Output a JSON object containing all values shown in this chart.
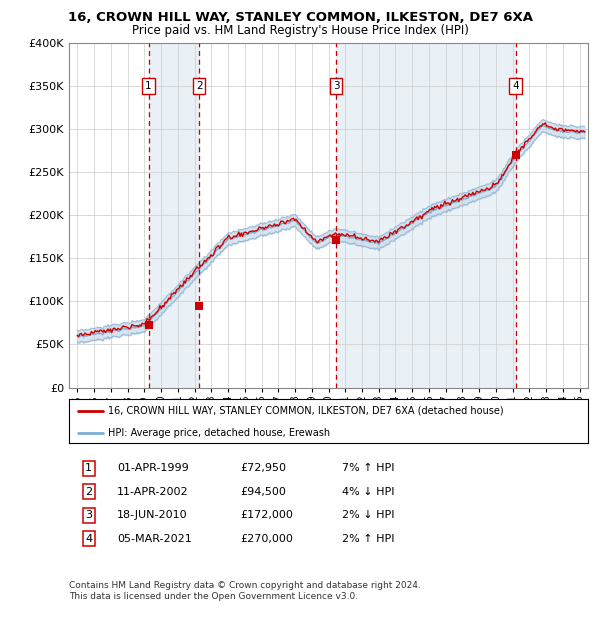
{
  "title1": "16, CROWN HILL WAY, STANLEY COMMON, ILKESTON, DE7 6XA",
  "title2": "Price paid vs. HM Land Registry's House Price Index (HPI)",
  "legend_line1": "16, CROWN HILL WAY, STANLEY COMMON, ILKESTON, DE7 6XA (detached house)",
  "legend_line2": "HPI: Average price, detached house, Erewash",
  "footnote1": "Contains HM Land Registry data © Crown copyright and database right 2024.",
  "footnote2": "This data is licensed under the Open Government Licence v3.0.",
  "sales": [
    {
      "num": 1,
      "date": "01-APR-1999",
      "price": 72950,
      "pct": "7%",
      "dir": "↑",
      "year_x": 1999.25
    },
    {
      "num": 2,
      "date": "11-APR-2002",
      "price": 94500,
      "pct": "4%",
      "dir": "↓",
      "year_x": 2002.28
    },
    {
      "num": 3,
      "date": "18-JUN-2010",
      "price": 172000,
      "pct": "2%",
      "dir": "↓",
      "year_x": 2010.46
    },
    {
      "num": 4,
      "date": "05-MAR-2021",
      "price": 270000,
      "pct": "2%",
      "dir": "↑",
      "year_x": 2021.18
    }
  ],
  "hpi_color": "#7bafd4",
  "hpi_band_color": "#c8d8e8",
  "sale_color": "#cc0000",
  "dashed_color": "#cc0000",
  "plot_bg": "#ffffff",
  "grid_color": "#cccccc",
  "ylim": [
    0,
    400000
  ],
  "xlim": [
    1994.5,
    2025.5
  ],
  "yticks": [
    0,
    50000,
    100000,
    150000,
    200000,
    250000,
    300000,
    350000,
    400000
  ]
}
